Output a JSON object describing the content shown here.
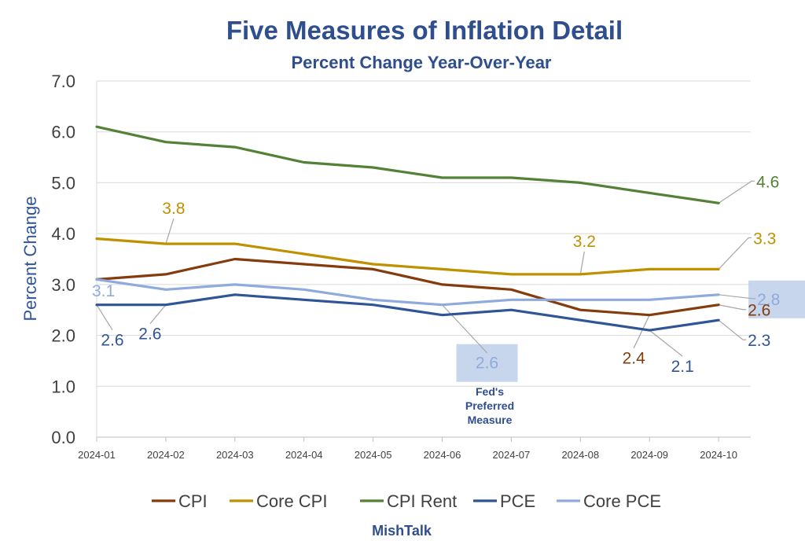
{
  "chart_data": {
    "type": "line",
    "title": "Five Measures of Inflation Detail",
    "subtitle": "Percent Change Year-Over-Year",
    "xlabel": "",
    "ylabel": "Percent Change",
    "ylim": [
      0,
      7
    ],
    "yticks": [
      "0.0",
      "1.0",
      "2.0",
      "3.0",
      "4.0",
      "5.0",
      "6.0",
      "7.0"
    ],
    "grid": true,
    "legend_position": "bottom",
    "categories": [
      "2024-01",
      "2024-02",
      "2024-03",
      "2024-04",
      "2024-05",
      "2024-06",
      "2024-07",
      "2024-08",
      "2024-09",
      "2024-10"
    ],
    "series": [
      {
        "name": "CPI",
        "color": "#843c0c",
        "values": [
          3.1,
          3.2,
          3.5,
          3.4,
          3.3,
          3.0,
          2.9,
          2.5,
          2.4,
          2.6
        ]
      },
      {
        "name": "Core CPI",
        "color": "#bf9000",
        "values": [
          3.9,
          3.8,
          3.8,
          3.6,
          3.4,
          3.3,
          3.2,
          3.2,
          3.3,
          3.3
        ]
      },
      {
        "name": "CPI Rent",
        "color": "#538135",
        "values": [
          6.1,
          5.8,
          5.7,
          5.4,
          5.3,
          5.1,
          5.1,
          5.0,
          4.8,
          4.6
        ]
      },
      {
        "name": "PCE",
        "color": "#2f5597",
        "values": [
          2.6,
          2.6,
          2.8,
          2.7,
          2.6,
          2.4,
          2.5,
          2.3,
          2.1,
          2.3
        ]
      },
      {
        "name": "Core PCE",
        "color": "#8faadc",
        "values": [
          3.1,
          2.9,
          3.0,
          2.9,
          2.7,
          2.6,
          2.7,
          2.7,
          2.7,
          2.8
        ]
      }
    ],
    "data_labels": [
      {
        "series": 2,
        "index": 9,
        "text": "4.6"
      },
      {
        "series": 1,
        "index": 1,
        "text": "3.8"
      },
      {
        "series": 1,
        "index": 7,
        "text": "3.2"
      },
      {
        "series": 1,
        "index": 9,
        "text": "3.3"
      },
      {
        "series": 4,
        "index": 0,
        "text": "3.1"
      },
      {
        "series": 4,
        "index": 9,
        "text": "2.8"
      },
      {
        "series": 4,
        "index": 5,
        "text": "2.6"
      },
      {
        "series": 3,
        "index": 0,
        "text": "2.6"
      },
      {
        "series": 3,
        "index": 1,
        "text": "2.6"
      },
      {
        "series": 0,
        "index": 8,
        "text": "2.4"
      },
      {
        "series": 3,
        "index": 8,
        "text": "2.1"
      },
      {
        "series": 0,
        "index": 9,
        "text": "2.6"
      },
      {
        "series": 3,
        "index": 9,
        "text": "2.3"
      }
    ],
    "annotation": [
      "Fed's",
      "Preferred",
      "Measure"
    ],
    "source": "MishTalk"
  }
}
